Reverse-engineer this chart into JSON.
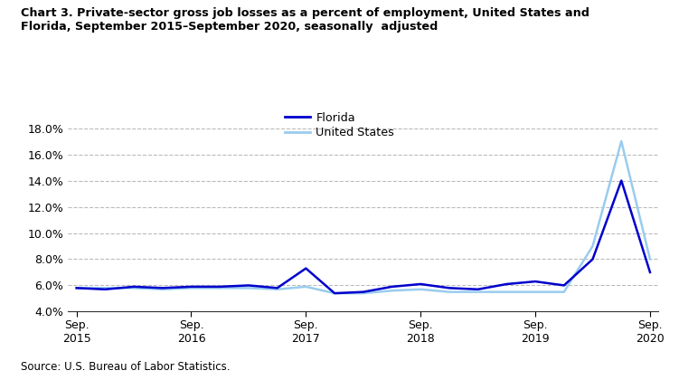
{
  "title_line1": "Chart 3. Private-sector gross job losses as a percent of employment, United States and",
  "title_line2": "Florida, September 2015–September 2020, seasonally  adjusted",
  "source": "Source: U.S. Bureau of Labor Statistics.",
  "florida": {
    "label": "Florida",
    "color": "#0000CC",
    "values": [
      5.8,
      5.7,
      5.9,
      5.8,
      5.9,
      5.9,
      6.0,
      5.8,
      7.3,
      5.4,
      5.5,
      5.9,
      6.1,
      5.8,
      5.7,
      6.1,
      6.3,
      6.0,
      8.0,
      14.0,
      7.0
    ]
  },
  "us": {
    "label": "United States",
    "color": "#99CCEE",
    "values": [
      5.8,
      5.8,
      5.8,
      5.7,
      5.8,
      5.8,
      5.8,
      5.7,
      5.9,
      5.4,
      5.4,
      5.6,
      5.7,
      5.5,
      5.5,
      5.5,
      5.5,
      5.5,
      9.0,
      17.0,
      8.0
    ]
  },
  "sep_positions": [
    0,
    4,
    8,
    12,
    16,
    20
  ],
  "sep_labels": [
    "Sep.\n2015",
    "Sep.\n2016",
    "Sep.\n2017",
    "Sep.\n2018",
    "Sep.\n2019",
    "Sep.\n2020"
  ],
  "ylim": [
    4.0,
    18.5
  ],
  "yticks": [
    4.0,
    6.0,
    8.0,
    10.0,
    12.0,
    14.0,
    16.0,
    18.0
  ],
  "background_color": "#ffffff",
  "grid_color": "#bbbbbb",
  "spine_color": "#333333"
}
